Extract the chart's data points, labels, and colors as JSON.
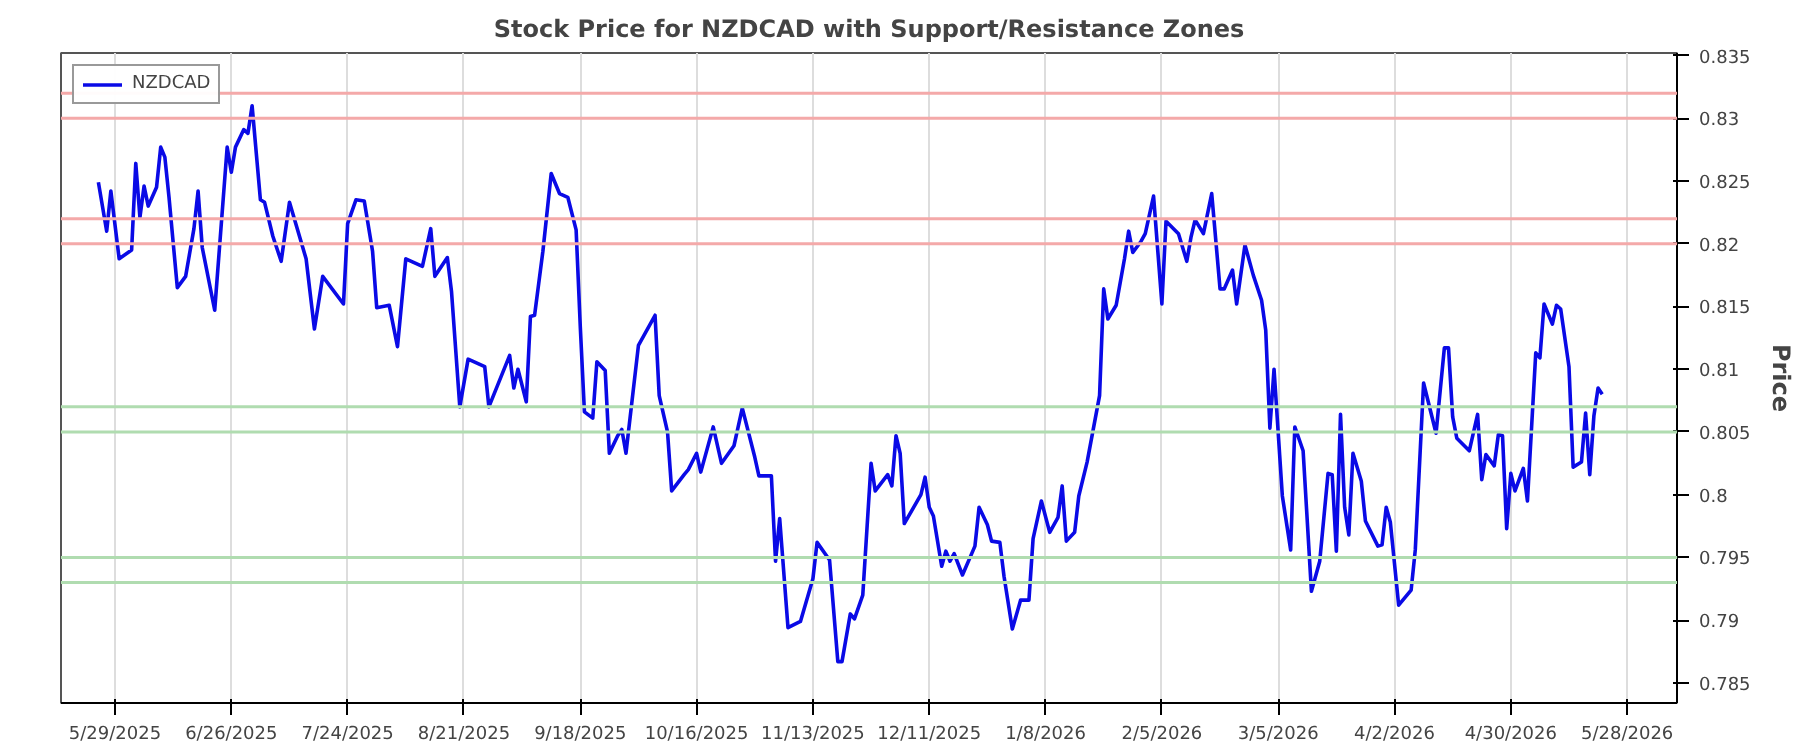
{
  "chart_data": {
    "type": "line",
    "title": "Stock Price for NZDCAD with Support/Resistance Zones",
    "ylabel": "Price",
    "xlim": [
      "2025-05-16",
      "2026-06-09"
    ],
    "ylim": [
      0.7834,
      0.8352
    ],
    "xticks": [
      {
        "value": "2025-05-29",
        "label": "5/29/2025"
      },
      {
        "value": "2025-06-26",
        "label": "6/26/2025"
      },
      {
        "value": "2025-07-24",
        "label": "7/24/2025"
      },
      {
        "value": "2025-08-21",
        "label": "8/21/2025"
      },
      {
        "value": "2025-09-18",
        "label": "9/18/2025"
      },
      {
        "value": "2025-10-16",
        "label": "10/16/2025"
      },
      {
        "value": "2025-11-13",
        "label": "11/13/2025"
      },
      {
        "value": "2025-12-11",
        "label": "12/11/2025"
      },
      {
        "value": "2026-01-08",
        "label": "1/8/2026"
      },
      {
        "value": "2026-02-05",
        "label": "2/5/2026"
      },
      {
        "value": "2026-03-05",
        "label": "3/5/2026"
      },
      {
        "value": "2026-04-02",
        "label": "4/2/2026"
      },
      {
        "value": "2026-04-30",
        "label": "4/30/2026"
      },
      {
        "value": "2026-05-28",
        "label": "5/28/2026"
      }
    ],
    "yticks": [
      0.785,
      0.79,
      0.795,
      0.8,
      0.805,
      0.81,
      0.815,
      0.82,
      0.825,
      0.83,
      0.835
    ],
    "grid": "x",
    "legend": "top left",
    "marker": "none",
    "line_style": "solid",
    "ref_lines": [
      {
        "axis": "y",
        "value": 0.832,
        "color": "#f4a9a9"
      },
      {
        "axis": "y",
        "value": 0.83,
        "color": "#f4a9a9"
      },
      {
        "axis": "y",
        "value": 0.822,
        "color": "#f4a9a9"
      },
      {
        "axis": "y",
        "value": 0.82,
        "color": "#f4a9a9"
      },
      {
        "axis": "y",
        "value": 0.807,
        "color": "#b0dcb0"
      },
      {
        "axis": "y",
        "value": 0.805,
        "color": "#b0dcb0"
      },
      {
        "axis": "y",
        "value": 0.795,
        "color": "#b0dcb0"
      },
      {
        "axis": "y",
        "value": 0.793,
        "color": "#b0dcb0"
      }
    ],
    "series": [
      {
        "name": "NZDCAD",
        "color": "#0a0ae6",
        "x": [
          "2025-05-25",
          "2025-05-27",
          "2025-05-28",
          "2025-05-30",
          "2025-06-02",
          "2025-06-03",
          "2025-06-04",
          "2025-06-05",
          "2025-06-06",
          "2025-06-08",
          "2025-06-09",
          "2025-06-10",
          "2025-06-11",
          "2025-06-13",
          "2025-06-15",
          "2025-06-17",
          "2025-06-18",
          "2025-06-19",
          "2025-06-22",
          "2025-06-25",
          "2025-06-26",
          "2025-06-27",
          "2025-06-29",
          "2025-06-30",
          "2025-07-01",
          "2025-07-03",
          "2025-07-04",
          "2025-07-06",
          "2025-07-08",
          "2025-07-10",
          "2025-07-14",
          "2025-07-16",
          "2025-07-18",
          "2025-07-23",
          "2025-07-24",
          "2025-07-26",
          "2025-07-28",
          "2025-07-30",
          "2025-07-31",
          "2025-08-03",
          "2025-08-05",
          "2025-08-07",
          "2025-08-11",
          "2025-08-13",
          "2025-08-14",
          "2025-08-17",
          "2025-08-18",
          "2025-08-20",
          "2025-08-22",
          "2025-08-26",
          "2025-08-27",
          "2025-09-01",
          "2025-09-02",
          "2025-09-03",
          "2025-09-05",
          "2025-09-06",
          "2025-09-07",
          "2025-09-09",
          "2025-09-11",
          "2025-09-13",
          "2025-09-15",
          "2025-09-17",
          "2025-09-18",
          "2025-09-19",
          "2025-09-21",
          "2025-09-22",
          "2025-09-24",
          "2025-09-25",
          "2025-09-27",
          "2025-09-28",
          "2025-09-29",
          "2025-10-02",
          "2025-10-06",
          "2025-10-07",
          "2025-10-09",
          "2025-10-10",
          "2025-10-13",
          "2025-10-14",
          "2025-10-16",
          "2025-10-17",
          "2025-10-20",
          "2025-10-22",
          "2025-10-25",
          "2025-10-27",
          "2025-10-30",
          "2025-10-31",
          "2025-11-03",
          "2025-11-04",
          "2025-11-05",
          "2025-11-07",
          "2025-11-10",
          "2025-11-13",
          "2025-11-14",
          "2025-11-17",
          "2025-11-19",
          "2025-11-20",
          "2025-11-22",
          "2025-11-23",
          "2025-11-25",
          "2025-11-27",
          "2025-11-28",
          "2025-12-01",
          "2025-12-02",
          "2025-12-03",
          "2025-12-04",
          "2025-12-05",
          "2025-12-09",
          "2025-12-10",
          "2025-12-11",
          "2025-12-12",
          "2025-12-14",
          "2025-12-15",
          "2025-12-16",
          "2025-12-17",
          "2025-12-19",
          "2025-12-22",
          "2025-12-23",
          "2025-12-25",
          "2025-12-26",
          "2025-12-28",
          "2025-12-29",
          "2025-12-31",
          "2026-01-02",
          "2026-01-04",
          "2026-01-05",
          "2026-01-07",
          "2026-01-09",
          "2026-01-11",
          "2026-01-12",
          "2026-01-13",
          "2026-01-15",
          "2026-01-16",
          "2026-01-18",
          "2026-01-21",
          "2026-01-22",
          "2026-01-23",
          "2026-01-25",
          "2026-01-27",
          "2026-01-28",
          "2026-01-29",
          "2026-01-31",
          "2026-02-01",
          "2026-02-03",
          "2026-02-05",
          "2026-02-06",
          "2026-02-09",
          "2026-02-11",
          "2026-02-12",
          "2026-02-13",
          "2026-02-15",
          "2026-02-17",
          "2026-02-19",
          "2026-02-20",
          "2026-02-22",
          "2026-02-23",
          "2026-02-25",
          "2026-02-27",
          "2026-03-01",
          "2026-03-02",
          "2026-03-03",
          "2026-03-04",
          "2026-03-06",
          "2026-03-08",
          "2026-03-09",
          "2026-03-11",
          "2026-03-13",
          "2026-03-15",
          "2026-03-17",
          "2026-03-18",
          "2026-03-19",
          "2026-03-20",
          "2026-03-21",
          "2026-03-22",
          "2026-03-23",
          "2026-03-25",
          "2026-03-26",
          "2026-03-29",
          "2026-03-30",
          "2026-03-31",
          "2026-04-01",
          "2026-04-03",
          "2026-04-06",
          "2026-04-07",
          "2026-04-09",
          "2026-04-12",
          "2026-04-14",
          "2026-04-15",
          "2026-04-16",
          "2026-04-17",
          "2026-04-20",
          "2026-04-22",
          "2026-04-23",
          "2026-04-24",
          "2026-04-26",
          "2026-04-27",
          "2026-04-28",
          "2026-04-29",
          "2026-04-30",
          "2026-05-01",
          "2026-05-03",
          "2026-05-04",
          "2026-05-06",
          "2026-05-07",
          "2026-05-08",
          "2026-05-10",
          "2026-05-11",
          "2026-05-12",
          "2026-05-14",
          "2026-05-15",
          "2026-05-17",
          "2026-05-18",
          "2026-05-19",
          "2026-05-20",
          "2026-05-21",
          "2026-05-22"
        ],
        "values": [
          0.8249,
          0.821,
          0.8242,
          0.8188,
          0.8195,
          0.8264,
          0.8221,
          0.8246,
          0.823,
          0.8245,
          0.8277,
          0.8269,
          0.8237,
          0.8165,
          0.8174,
          0.8212,
          0.8242,
          0.8197,
          0.8147,
          0.8277,
          0.8257,
          0.8277,
          0.8291,
          0.8288,
          0.831,
          0.8235,
          0.8233,
          0.8206,
          0.8186,
          0.8233,
          0.8188,
          0.8132,
          0.8174,
          0.8152,
          0.8216,
          0.8235,
          0.8234,
          0.8194,
          0.8149,
          0.8151,
          0.8118,
          0.8188,
          0.8182,
          0.8212,
          0.8174,
          0.8189,
          0.8162,
          0.807,
          0.8108,
          0.8102,
          0.807,
          0.8111,
          0.8085,
          0.81,
          0.8074,
          0.8142,
          0.8143,
          0.8194,
          0.8256,
          0.824,
          0.8237,
          0.8211,
          0.8134,
          0.8066,
          0.8061,
          0.8106,
          0.8099,
          0.8033,
          0.8047,
          0.8052,
          0.8033,
          0.8119,
          0.8143,
          0.8079,
          0.805,
          0.8003,
          0.8016,
          0.802,
          0.8033,
          0.8018,
          0.8054,
          0.8025,
          0.8039,
          0.8069,
          0.803,
          0.8015,
          0.8015,
          0.7947,
          0.7981,
          0.7894,
          0.7899,
          0.7933,
          0.7962,
          0.7948,
          0.7867,
          0.7867,
          0.7905,
          0.7901,
          0.792,
          0.8025,
          0.8003,
          0.8016,
          0.8007,
          0.8047,
          0.8033,
          0.7977,
          0.8,
          0.8014,
          0.799,
          0.7983,
          0.7943,
          0.7955,
          0.7947,
          0.7953,
          0.7936,
          0.7959,
          0.799,
          0.7976,
          0.7963,
          0.7962,
          0.7935,
          0.7893,
          0.7916,
          0.7916,
          0.7965,
          0.7995,
          0.797,
          0.7982,
          0.8007,
          0.7963,
          0.797,
          0.7999,
          0.8026,
          0.8079,
          0.8164,
          0.814,
          0.8151,
          0.8188,
          0.821,
          0.8193,
          0.8202,
          0.8208,
          0.8238,
          0.8152,
          0.8218,
          0.8208,
          0.8186,
          0.8205,
          0.8219,
          0.8208,
          0.824,
          0.8164,
          0.8164,
          0.8179,
          0.8152,
          0.8199,
          0.8175,
          0.8155,
          0.8131,
          0.8053,
          0.81,
          0.7999,
          0.7956,
          0.8054,
          0.8035,
          0.7923,
          0.7947,
          0.8017,
          0.8016,
          0.7955,
          0.8064,
          0.799,
          0.7968,
          0.8033,
          0.8011,
          0.7979,
          0.7959,
          0.796,
          0.799,
          0.7978,
          0.7912,
          0.7924,
          0.7956,
          0.8089,
          0.8049,
          0.8117,
          0.8117,
          0.8062,
          0.8045,
          0.8035,
          0.8064,
          0.8012,
          0.8032,
          0.8023,
          0.8048,
          0.8047,
          0.7973,
          0.8017,
          0.8003,
          0.8021,
          0.7995,
          0.8113,
          0.8109,
          0.8152,
          0.8136,
          0.8151,
          0.8148,
          0.8102,
          0.8022,
          0.8026,
          0.8065,
          0.8016,
          0.8063,
          0.8085,
          0.808
        ]
      }
    ]
  }
}
